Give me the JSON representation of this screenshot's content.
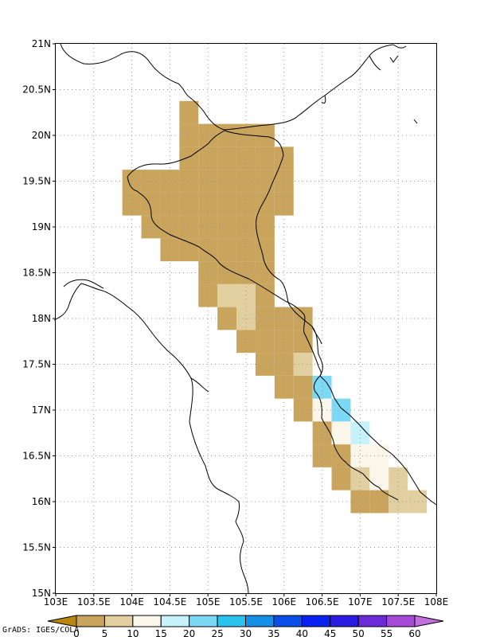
{
  "chart_data": {
    "type": "heatmap",
    "lon_range": [
      103,
      108
    ],
    "lat_range": [
      15,
      21
    ],
    "grid": true,
    "cell_size_deg": 0.25,
    "x_ticks": [
      "103E",
      "103.5E",
      "104E",
      "104.5E",
      "105E",
      "105.5E",
      "106E",
      "106.5E",
      "107E",
      "107.5E",
      "108E"
    ],
    "y_ticks": [
      "21N",
      "20.5N",
      "20N",
      "19.5N",
      "19N",
      "18.5N",
      "18N",
      "17.5N",
      "17N",
      "16.5N",
      "16N",
      "15.5N",
      "15N"
    ],
    "colorbar": {
      "levels": [
        "0",
        "5",
        "10",
        "15",
        "20",
        "25",
        "30",
        "35",
        "40",
        "45",
        "50",
        "55",
        "60"
      ],
      "colors": [
        "#b8860b",
        "#c9a45c",
        "#e2cfa0",
        "#fbf6ea",
        "#c6f2fb",
        "#7bd9f5",
        "#2cc2ee",
        "#1590e6",
        "#0a50e8",
        "#0a22f0",
        "#2a1ce0",
        "#6d2bd8",
        "#a64ad8",
        "#c06fdc"
      ]
    },
    "cells": [
      {
        "lon": 104.75,
        "lat": 20.25,
        "value": 0
      },
      {
        "lon": 104.75,
        "lat": 20.0,
        "value": 0
      },
      {
        "lon": 105.0,
        "lat": 20.0,
        "value": 0
      },
      {
        "lon": 105.25,
        "lat": 20.0,
        "value": 0
      },
      {
        "lon": 105.5,
        "lat": 20.0,
        "value": 0
      },
      {
        "lon": 105.75,
        "lat": 20.0,
        "value": 0
      },
      {
        "lon": 104.75,
        "lat": 19.75,
        "value": 0
      },
      {
        "lon": 105.0,
        "lat": 19.75,
        "value": 0
      },
      {
        "lon": 105.25,
        "lat": 19.75,
        "value": 0
      },
      {
        "lon": 105.5,
        "lat": 19.75,
        "value": 0
      },
      {
        "lon": 105.75,
        "lat": 19.75,
        "value": 0
      },
      {
        "lon": 106.0,
        "lat": 19.75,
        "value": 0
      },
      {
        "lon": 104.0,
        "lat": 19.5,
        "value": 0
      },
      {
        "lon": 104.25,
        "lat": 19.5,
        "value": 0
      },
      {
        "lon": 104.5,
        "lat": 19.5,
        "value": 0
      },
      {
        "lon": 104.75,
        "lat": 19.5,
        "value": 0
      },
      {
        "lon": 105.0,
        "lat": 19.5,
        "value": 0
      },
      {
        "lon": 105.25,
        "lat": 19.5,
        "value": 0
      },
      {
        "lon": 105.5,
        "lat": 19.5,
        "value": 0
      },
      {
        "lon": 105.75,
        "lat": 19.5,
        "value": 0
      },
      {
        "lon": 106.0,
        "lat": 19.5,
        "value": 0
      },
      {
        "lon": 104.0,
        "lat": 19.25,
        "value": 0
      },
      {
        "lon": 104.25,
        "lat": 19.25,
        "value": 0
      },
      {
        "lon": 104.5,
        "lat": 19.25,
        "value": 0
      },
      {
        "lon": 104.75,
        "lat": 19.25,
        "value": 0
      },
      {
        "lon": 105.0,
        "lat": 19.25,
        "value": 0
      },
      {
        "lon": 105.25,
        "lat": 19.25,
        "value": 0
      },
      {
        "lon": 105.5,
        "lat": 19.25,
        "value": 0
      },
      {
        "lon": 105.75,
        "lat": 19.25,
        "value": 0
      },
      {
        "lon": 106.0,
        "lat": 19.25,
        "value": 0
      },
      {
        "lon": 104.25,
        "lat": 19.0,
        "value": 0
      },
      {
        "lon": 104.5,
        "lat": 19.0,
        "value": 0
      },
      {
        "lon": 104.75,
        "lat": 19.0,
        "value": 0
      },
      {
        "lon": 105.0,
        "lat": 19.0,
        "value": 0
      },
      {
        "lon": 105.25,
        "lat": 19.0,
        "value": 0
      },
      {
        "lon": 105.5,
        "lat": 19.0,
        "value": 0
      },
      {
        "lon": 105.75,
        "lat": 19.0,
        "value": 0
      },
      {
        "lon": 104.5,
        "lat": 18.75,
        "value": 0
      },
      {
        "lon": 104.75,
        "lat": 18.75,
        "value": 0
      },
      {
        "lon": 105.0,
        "lat": 18.75,
        "value": 0
      },
      {
        "lon": 105.25,
        "lat": 18.75,
        "value": 0
      },
      {
        "lon": 105.5,
        "lat": 18.75,
        "value": 0
      },
      {
        "lon": 105.75,
        "lat": 18.75,
        "value": 0
      },
      {
        "lon": 105.0,
        "lat": 18.5,
        "value": 0
      },
      {
        "lon": 105.25,
        "lat": 18.5,
        "value": 3
      },
      {
        "lon": 105.5,
        "lat": 18.5,
        "value": 0
      },
      {
        "lon": 105.75,
        "lat": 18.5,
        "value": 0
      },
      {
        "lon": 105.0,
        "lat": 18.25,
        "value": 0
      },
      {
        "lon": 105.25,
        "lat": 18.25,
        "value": 7
      },
      {
        "lon": 105.5,
        "lat": 18.25,
        "value": 7
      },
      {
        "lon": 105.75,
        "lat": 18.25,
        "value": 0
      },
      {
        "lon": 105.25,
        "lat": 18.0,
        "value": 0
      },
      {
        "lon": 105.5,
        "lat": 18.0,
        "value": 7
      },
      {
        "lon": 105.75,
        "lat": 18.0,
        "value": 3
      },
      {
        "lon": 106.0,
        "lat": 18.0,
        "value": 3
      },
      {
        "lon": 106.25,
        "lat": 18.0,
        "value": 0
      },
      {
        "lon": 105.5,
        "lat": 17.75,
        "value": 0
      },
      {
        "lon": 105.75,
        "lat": 17.75,
        "value": 0
      },
      {
        "lon": 106.0,
        "lat": 17.75,
        "value": 0
      },
      {
        "lon": 106.25,
        "lat": 17.75,
        "value": 3
      },
      {
        "lon": 105.75,
        "lat": 17.5,
        "value": 0
      },
      {
        "lon": 106.0,
        "lat": 17.5,
        "value": 0
      },
      {
        "lon": 106.25,
        "lat": 17.5,
        "value": 7
      },
      {
        "lon": 106.0,
        "lat": 17.25,
        "value": 0
      },
      {
        "lon": 106.25,
        "lat": 17.25,
        "value": 3
      },
      {
        "lon": 106.5,
        "lat": 17.25,
        "value": 22
      },
      {
        "lon": 106.25,
        "lat": 17.0,
        "value": 0
      },
      {
        "lon": 106.5,
        "lat": 17.0,
        "value": 12
      },
      {
        "lon": 106.75,
        "lat": 17.0,
        "value": 22
      },
      {
        "lon": 106.5,
        "lat": 16.75,
        "value": 3
      },
      {
        "lon": 106.75,
        "lat": 16.75,
        "value": 12
      },
      {
        "lon": 107.0,
        "lat": 16.75,
        "value": 17
      },
      {
        "lon": 106.5,
        "lat": 16.5,
        "value": 0
      },
      {
        "lon": 106.75,
        "lat": 16.5,
        "value": 0
      },
      {
        "lon": 107.0,
        "lat": 16.5,
        "value": 12
      },
      {
        "lon": 107.25,
        "lat": 16.5,
        "value": 12
      },
      {
        "lon": 106.75,
        "lat": 16.25,
        "value": 0
      },
      {
        "lon": 107.0,
        "lat": 16.25,
        "value": 7
      },
      {
        "lon": 107.25,
        "lat": 16.25,
        "value": 12
      },
      {
        "lon": 107.5,
        "lat": 16.25,
        "value": 7
      },
      {
        "lon": 107.0,
        "lat": 16.0,
        "value": 0
      },
      {
        "lon": 107.25,
        "lat": 16.0,
        "value": 3
      },
      {
        "lon": 107.5,
        "lat": 16.0,
        "value": 7
      },
      {
        "lon": 107.75,
        "lat": 16.0,
        "value": 7
      }
    ]
  },
  "credit": "GrADS: IGES/COLA",
  "style": {
    "frame_color": "#000000",
    "grid_color": "#999999",
    "coast_color": "#000000"
  }
}
